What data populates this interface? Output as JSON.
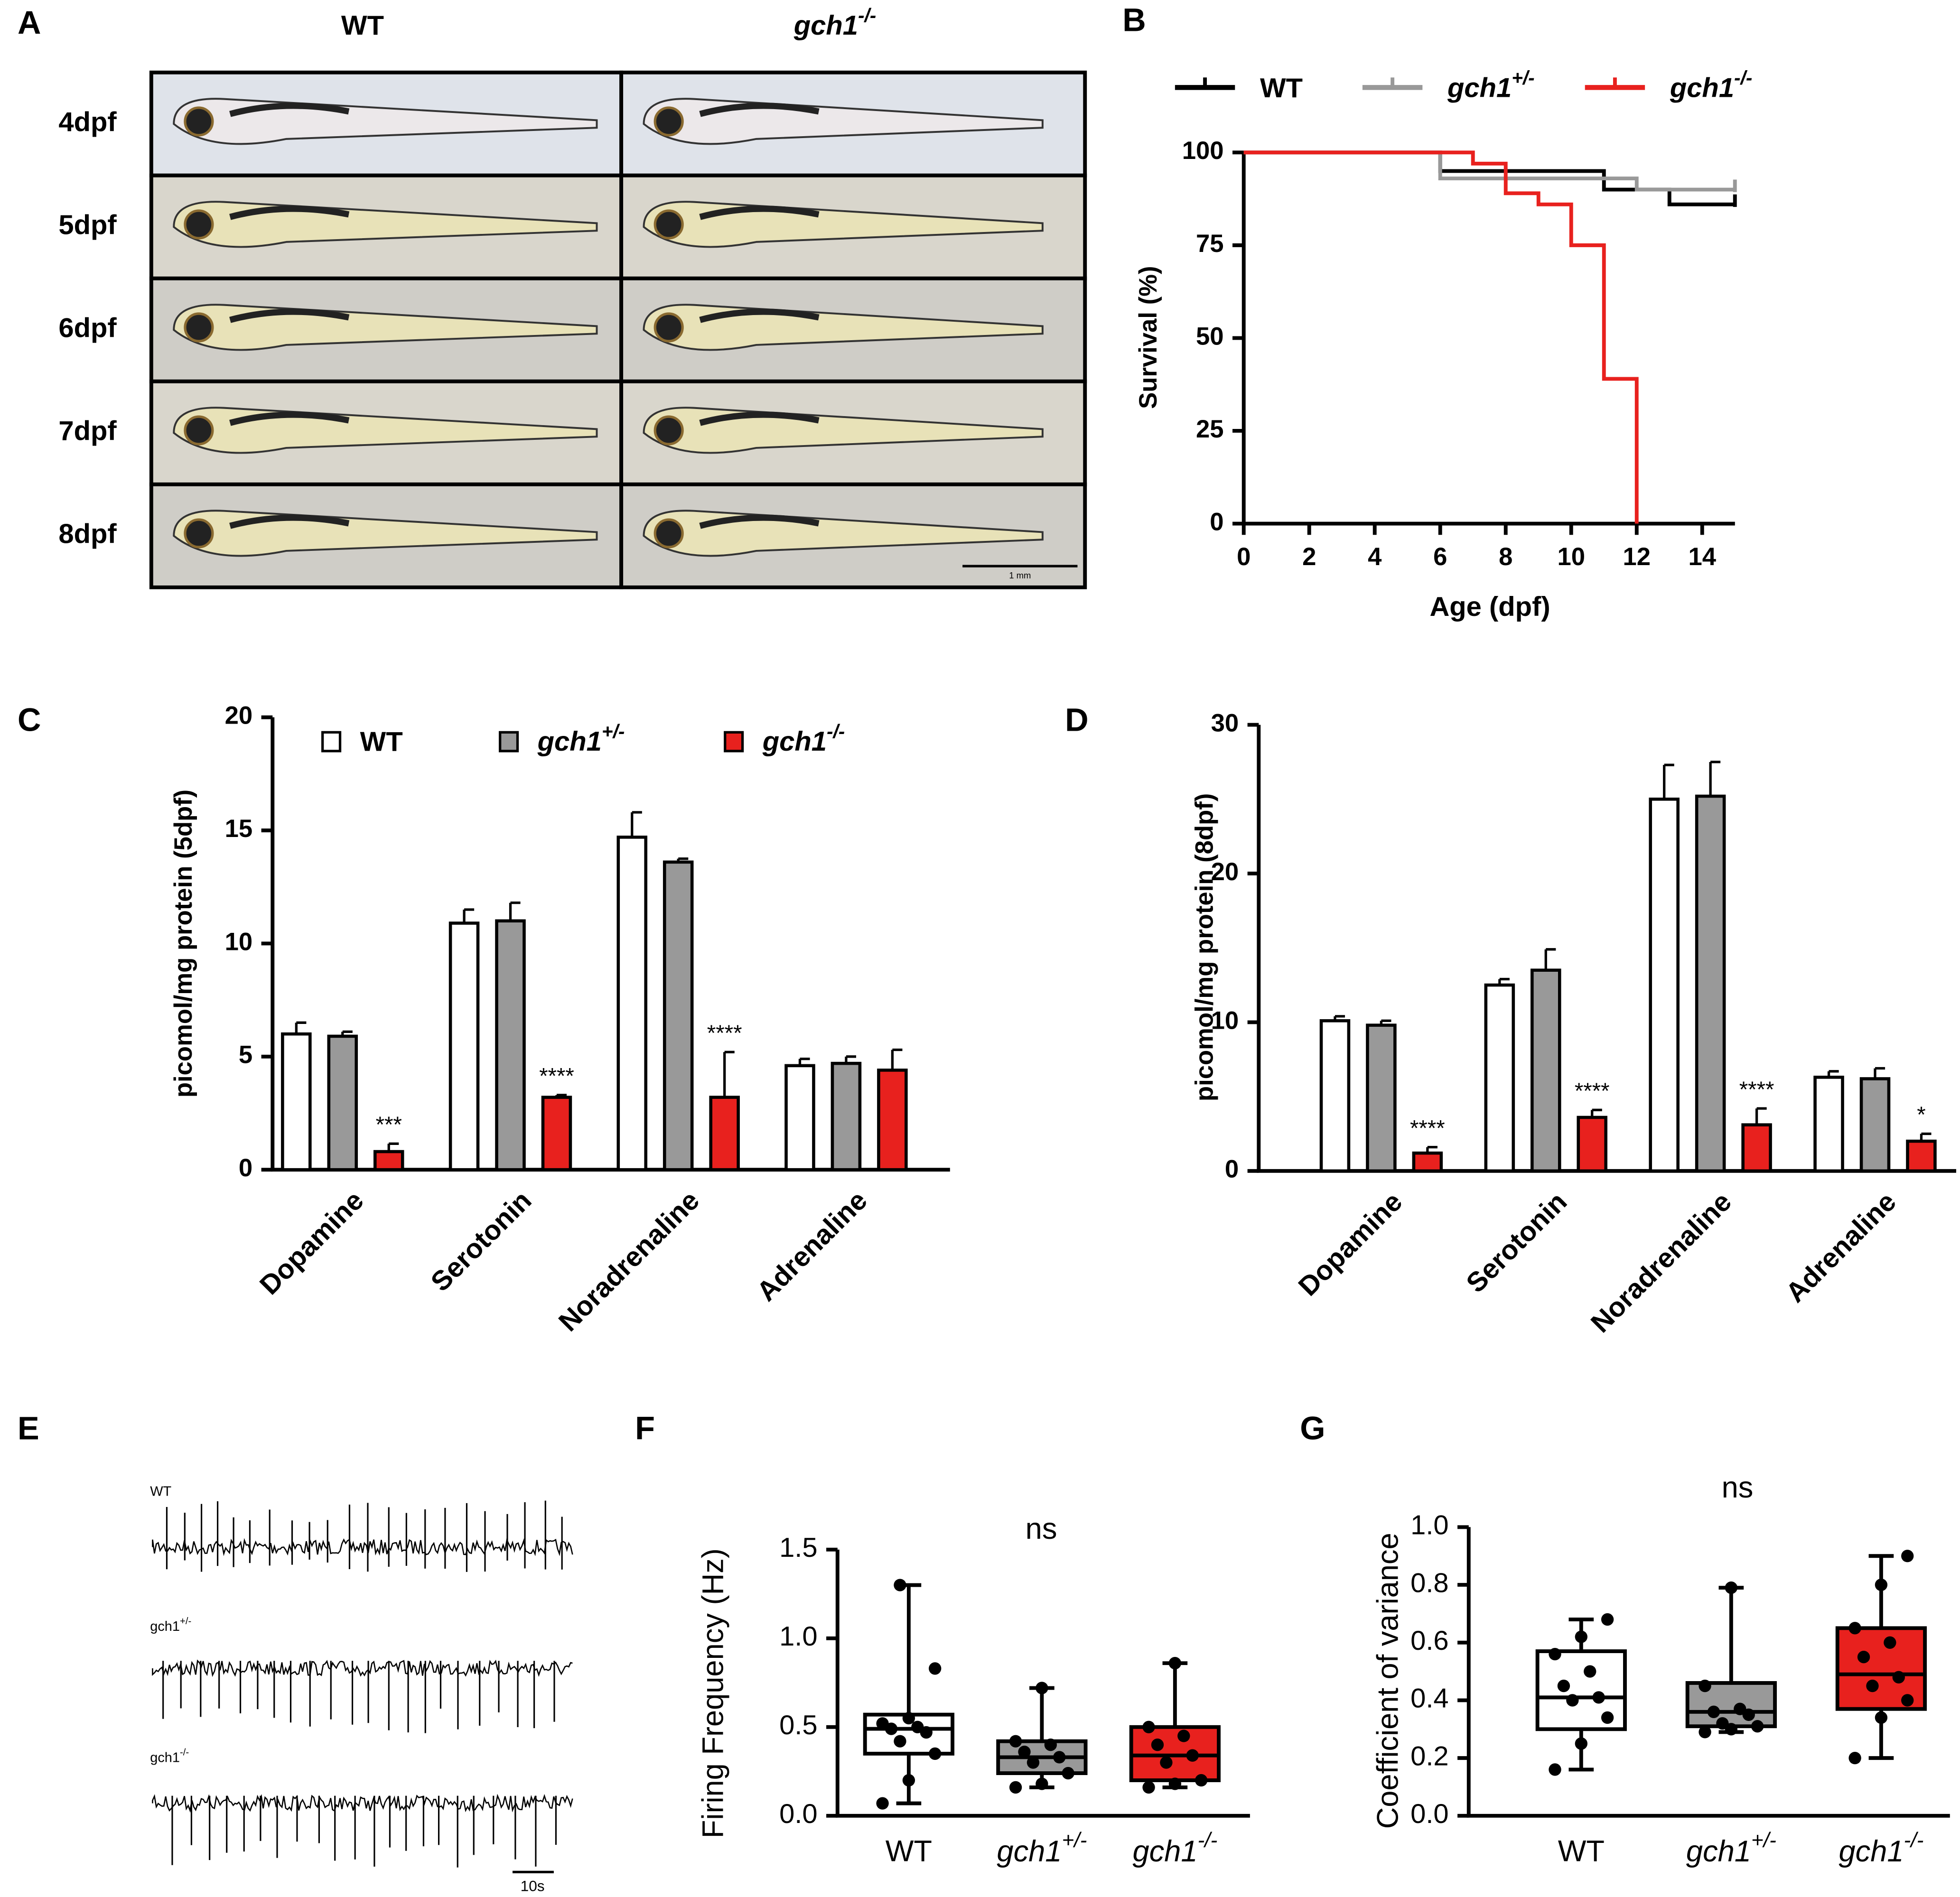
{
  "panel_a": {
    "panel": "A",
    "columns": [
      "WT",
      "gch1-/-"
    ],
    "rows": [
      "4dpf",
      "5dpf",
      "6dpf",
      "7dpf",
      "8dpf"
    ],
    "scale_bar": "1 mm"
  },
  "panel_e": {
    "panel": "E",
    "traces": [
      "WT",
      "gch1+/-",
      "gch1-/-"
    ],
    "scale_bar": "10s"
  },
  "chart_data": [
    {
      "panel": "B",
      "type": "step",
      "x_label": "Age (dpf)",
      "y_label": "Survival (%)",
      "xlim": [
        0,
        15
      ],
      "ylim": [
        0,
        100
      ],
      "xticks": [
        0,
        2,
        4,
        6,
        8,
        10,
        12,
        14
      ],
      "yticks": [
        0,
        25,
        50,
        75,
        100
      ],
      "series": [
        {
          "name": "WT",
          "color": "#000000",
          "x": [
            0,
            6,
            11,
            13,
            15
          ],
          "values": [
            100,
            95,
            90,
            86,
            86
          ]
        },
        {
          "name": "gch1+/-",
          "color": "#999999",
          "x": [
            0,
            6,
            12,
            15
          ],
          "values": [
            100,
            93,
            90,
            90
          ]
        },
        {
          "name": "gch1-/-",
          "color": "#e8211e",
          "x": [
            0,
            7,
            8,
            9,
            10,
            11,
            12
          ],
          "values": [
            100,
            97,
            89,
            86,
            75,
            39,
            0
          ]
        }
      ]
    },
    {
      "panel": "C",
      "type": "bar",
      "y_label": "picomol/mg protein (5dpf)",
      "categories": [
        "Dopamine",
        "Serotonin",
        "Noradrenaline",
        "Adrenaline"
      ],
      "ylim": [
        0,
        20
      ],
      "yticks": [
        0,
        5,
        10,
        15,
        20
      ],
      "series": [
        {
          "name": "WT",
          "color": "#ffffff",
          "values": [
            6.0,
            10.9,
            14.7,
            4.6
          ],
          "errors": [
            0.5,
            0.6,
            1.1,
            0.3
          ]
        },
        {
          "name": "gch1+/-",
          "color": "#999999",
          "values": [
            5.9,
            11.0,
            13.6,
            4.7
          ],
          "errors": [
            0.2,
            0.8,
            0.15,
            0.3
          ]
        },
        {
          "name": "gch1-/-",
          "color": "#e8211e",
          "values": [
            0.8,
            3.2,
            3.2,
            4.4
          ],
          "errors": [
            0.35,
            0.1,
            2.0,
            0.9
          ],
          "labels": [
            "***",
            "****",
            "****",
            null
          ]
        }
      ]
    },
    {
      "panel": "D",
      "type": "bar",
      "y_label": "picomol/mg protein (8dpf)",
      "categories": [
        "Dopamine",
        "Serotonin",
        "Noradrenaline",
        "Adrenaline"
      ],
      "ylim": [
        0,
        30
      ],
      "yticks": [
        0,
        10,
        20,
        30
      ],
      "series": [
        {
          "name": "WT",
          "color": "#ffffff",
          "values": [
            10.1,
            12.5,
            25.0,
            6.3
          ],
          "errors": [
            0.3,
            0.4,
            2.3,
            0.4
          ]
        },
        {
          "name": "gch1+/-",
          "color": "#999999",
          "values": [
            9.8,
            13.5,
            25.2,
            6.2
          ],
          "errors": [
            0.3,
            1.4,
            2.3,
            0.7
          ]
        },
        {
          "name": "gch1-/-",
          "color": "#e8211e",
          "values": [
            1.2,
            3.6,
            3.1,
            2.0
          ],
          "errors": [
            0.4,
            0.5,
            1.1,
            0.5
          ],
          "labels": [
            "****",
            "****",
            "****",
            "*"
          ]
        }
      ]
    },
    {
      "panel": "F",
      "type": "box",
      "y_label": "Firing Frequency (Hz)",
      "annotation": "ns",
      "categories": [
        "WT",
        "gch1+/-",
        "gch1-/-"
      ],
      "ylim": [
        0,
        1.5
      ],
      "yticks": [
        {
          "value": 0,
          "label": "0.0"
        },
        0.5,
        {
          "value": 1,
          "label": "1.0"
        },
        1.5
      ],
      "colors": [
        "#ffffff",
        "#999999",
        "#e8211e"
      ],
      "boxes": [
        {
          "min": 0.07,
          "q1": 0.35,
          "median": 0.49,
          "q3": 0.57,
          "max": 1.3,
          "points": [
            0.07,
            0.2,
            0.35,
            0.42,
            0.47,
            0.49,
            0.5,
            0.52,
            0.55,
            0.83,
            1.3
          ]
        },
        {
          "min": 0.16,
          "q1": 0.24,
          "median": 0.33,
          "q3": 0.42,
          "max": 0.72,
          "points": [
            0.16,
            0.18,
            0.24,
            0.3,
            0.33,
            0.36,
            0.4,
            0.42,
            0.72
          ]
        },
        {
          "min": 0.16,
          "q1": 0.2,
          "median": 0.34,
          "q3": 0.5,
          "max": 0.86,
          "points": [
            0.16,
            0.18,
            0.2,
            0.3,
            0.34,
            0.4,
            0.45,
            0.5,
            0.86
          ]
        }
      ]
    },
    {
      "panel": "G",
      "type": "box",
      "y_label": "Coefficient of variance",
      "annotation": "ns",
      "categories": [
        "WT",
        "gch1+/-",
        "gch1-/-"
      ],
      "ylim": [
        0,
        1
      ],
      "yticks": [
        {
          "value": 0,
          "label": "0.0"
        },
        0.2,
        0.4,
        0.6,
        0.8,
        {
          "value": 1,
          "label": "1.0"
        }
      ],
      "colors": [
        "#ffffff",
        "#999999",
        "#e8211e"
      ],
      "boxes": [
        {
          "min": 0.16,
          "q1": 0.3,
          "median": 0.41,
          "q3": 0.57,
          "max": 0.68,
          "points": [
            0.16,
            0.25,
            0.34,
            0.4,
            0.41,
            0.45,
            0.5,
            0.56,
            0.62,
            0.68
          ]
        },
        {
          "min": 0.29,
          "q1": 0.31,
          "median": 0.36,
          "q3": 0.46,
          "max": 0.79,
          "points": [
            0.29,
            0.3,
            0.31,
            0.32,
            0.35,
            0.36,
            0.37,
            0.45,
            0.79
          ]
        },
        {
          "min": 0.2,
          "q1": 0.37,
          "median": 0.49,
          "q3": 0.65,
          "max": 0.9,
          "points": [
            0.2,
            0.34,
            0.4,
            0.45,
            0.48,
            0.55,
            0.6,
            0.65,
            0.8,
            0.9
          ]
        }
      ]
    }
  ]
}
